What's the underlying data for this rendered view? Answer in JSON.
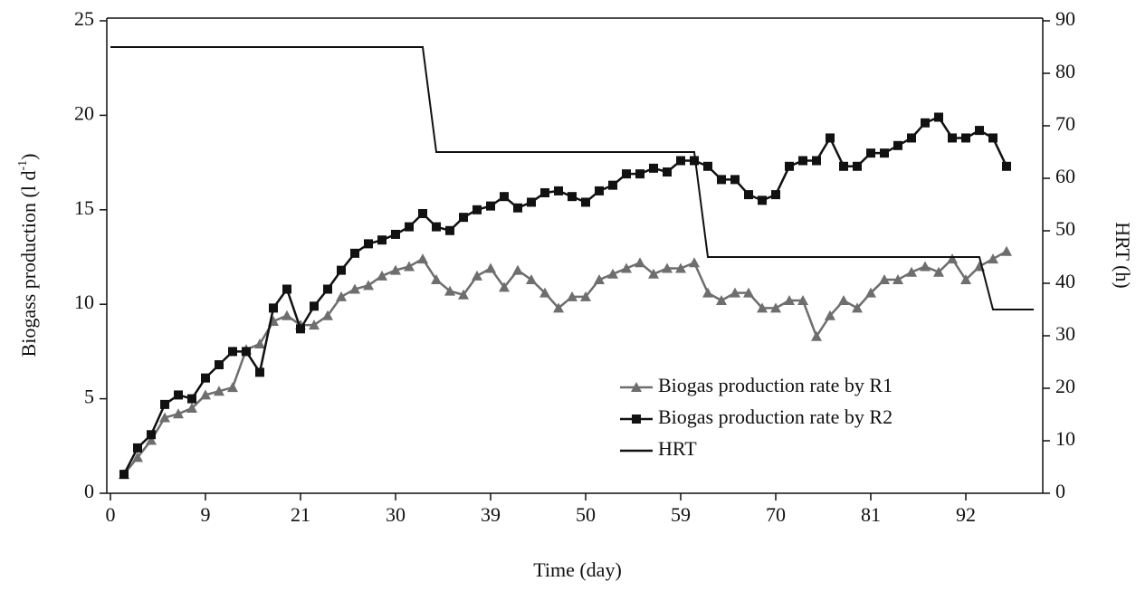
{
  "chart_data": {
    "type": "line",
    "xlabel": "Time (day)",
    "ylabel": [
      "Biogass production (l d",
      "-1",
      ")"
    ],
    "y2label": "HRT (h)",
    "categories": [
      "0",
      null,
      null,
      null,
      null,
      null,
      null,
      "9",
      null,
      null,
      null,
      null,
      null,
      null,
      "21",
      null,
      null,
      null,
      null,
      null,
      null,
      "30",
      null,
      null,
      null,
      null,
      null,
      null,
      "39",
      null,
      null,
      null,
      null,
      null,
      null,
      "50",
      null,
      null,
      null,
      null,
      null,
      null,
      "59",
      null,
      null,
      null,
      null,
      null,
      null,
      "70",
      null,
      null,
      null,
      null,
      null,
      null,
      "81",
      null,
      null,
      null,
      null,
      null,
      null,
      "92",
      null,
      null,
      null,
      null,
      null
    ],
    "ylim": [
      0,
      25
    ],
    "yticks": [
      0,
      5,
      10,
      15,
      20,
      25
    ],
    "y2lim": [
      0,
      90
    ],
    "y2ticks": [
      0,
      10,
      20,
      30,
      40,
      50,
      60,
      70,
      80,
      90
    ],
    "legend": "lower right",
    "series": [
      {
        "name": "Biogas production rate by R1",
        "color": "#6e6e6e",
        "marker": "triangle",
        "values": [
          null,
          1.0,
          1.9,
          2.8,
          4.0,
          4.2,
          4.5,
          5.2,
          5.4,
          5.6,
          7.6,
          7.9,
          9.1,
          9.4,
          8.9,
          8.9,
          9.4,
          10.4,
          10.8,
          11.0,
          11.5,
          11.8,
          12.0,
          12.4,
          11.3,
          10.7,
          10.5,
          11.5,
          11.9,
          10.9,
          11.8,
          11.3,
          10.6,
          9.8,
          10.4,
          10.4,
          11.3,
          11.6,
          11.9,
          12.2,
          11.6,
          11.9,
          11.9,
          12.2,
          10.6,
          10.2,
          10.6,
          10.6,
          9.8,
          9.8,
          10.2,
          10.2,
          8.3,
          9.4,
          10.2,
          9.8,
          10.6,
          11.3,
          11.3,
          11.7,
          12.0,
          11.7,
          12.4,
          11.3,
          12.0,
          12.4,
          12.8,
          null,
          null
        ]
      },
      {
        "name": "Biogas production rate by R2",
        "color": "#111111",
        "marker": "square",
        "values": [
          null,
          1.0,
          2.4,
          3.1,
          4.7,
          5.2,
          5.0,
          6.1,
          6.8,
          7.5,
          7.5,
          6.4,
          9.8,
          10.8,
          8.7,
          9.9,
          10.8,
          11.8,
          12.7,
          13.2,
          13.4,
          13.7,
          14.1,
          14.8,
          14.1,
          13.9,
          14.6,
          15.0,
          15.2,
          15.7,
          15.1,
          15.4,
          15.9,
          16.0,
          15.7,
          15.4,
          16.0,
          16.3,
          16.9,
          16.9,
          17.2,
          17.0,
          17.6,
          17.6,
          17.3,
          16.6,
          16.6,
          15.8,
          15.5,
          15.8,
          17.3,
          17.6,
          17.6,
          18.8,
          17.3,
          17.3,
          18.0,
          18.0,
          18.4,
          18.8,
          19.6,
          19.9,
          18.8,
          18.8,
          19.2,
          18.8,
          17.3,
          null,
          null
        ]
      },
      {
        "name": "HRT",
        "color": "#111111",
        "marker": "none",
        "axis": "y2",
        "values": [
          85,
          85,
          85,
          85,
          85,
          85,
          85,
          85,
          85,
          85,
          85,
          85,
          85,
          85,
          85,
          85,
          85,
          85,
          85,
          85,
          85,
          85,
          85,
          85,
          65,
          65,
          65,
          65,
          65,
          65,
          65,
          65,
          65,
          65,
          65,
          65,
          65,
          65,
          65,
          65,
          65,
          65,
          65,
          65,
          45,
          45,
          45,
          45,
          45,
          45,
          45,
          45,
          45,
          45,
          45,
          45,
          45,
          45,
          45,
          45,
          45,
          45,
          45,
          45,
          45,
          35,
          35,
          35,
          35
        ]
      }
    ]
  }
}
